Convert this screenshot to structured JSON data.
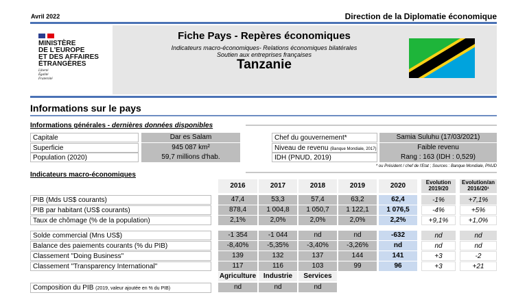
{
  "header": {
    "date": "Avril 2022",
    "department": "Direction de la Diplomatie économique",
    "title": "Fiche Pays - Repères économiques",
    "subtitle1": "Indicateurs macro-économiques- Relations économiques bilatérales",
    "subtitle2": "Soutien aux entreprises françaises",
    "country": "Tanzanie"
  },
  "logo": {
    "line1": "MINISTÈRE",
    "line2": "DE L'EUROPE",
    "line3": "ET DES AFFAIRES",
    "line4": "ÉTRANGÈRES",
    "motto": [
      "Liberté",
      "Égalité",
      "Fraternité"
    ]
  },
  "section_title": "Informations sur le pays",
  "general": {
    "title_a": "Informations générales - ",
    "title_b": "dernières données disponibles",
    "left": [
      {
        "label": "Capitale",
        "value": "Dar es Salam"
      },
      {
        "label": "Superficie",
        "value": "945 087 km²"
      },
      {
        "label": "Population (2020)",
        "value": "59,7 millions d'hab."
      }
    ],
    "right": [
      {
        "label": "Chef du gouvernement*",
        "note": "",
        "value": "Samia Suluhu (17/03/2021)"
      },
      {
        "label": "Niveau de revenu ",
        "note": "(Banque Mondiale, 2017)",
        "value": "Faible revenu"
      },
      {
        "label": "IDH (PNUD, 2019)",
        "note": "",
        "value": "Rang : 163 (IDH : 0,529)"
      }
    ],
    "footnote": "* ou Président / chef de l'Etat ; Sources : Banque Mondiale, PNUD"
  },
  "macro": {
    "title": "Indicateurs macro-économiques",
    "years": [
      "2016",
      "2017",
      "2018",
      "2019",
      "2020"
    ],
    "evo1": [
      "Evolution",
      "2019/20"
    ],
    "evo2": [
      "Evolution/an",
      "2016/20¹"
    ],
    "rows": [
      {
        "label": "PIB (Mds US$ courants)",
        "values": [
          "47,4",
          "53,3",
          "57,4",
          "63,2",
          "62,4"
        ],
        "evo": [
          "-1%",
          "+7,1%"
        ]
      },
      {
        "label": "PIB par habitant (US$ courants)",
        "values": [
          "878,4",
          "1 004,8",
          "1 050,7",
          "1 122,1",
          "1 076,5"
        ],
        "evo": [
          "-4%",
          "+5%"
        ]
      },
      {
        "label": "Taux de chômage (% de la population)",
        "values": [
          "2,1%",
          "2,0%",
          "2,0%",
          "2,0%",
          "2,2%"
        ],
        "evo": [
          "+9,1%",
          "+1,0%"
        ]
      },
      {
        "label": "Solde commercial (Mns US$)",
        "values": [
          "-1 354",
          "-1 044",
          "nd",
          "nd",
          "-632"
        ],
        "evo": [
          "nd",
          "nd"
        ]
      },
      {
        "label": "Balance des paiements courants (% du PIB)",
        "values": [
          "-8,40%",
          "-5,35%",
          "-3,40%",
          "-3,26%",
          "nd"
        ],
        "evo": [
          "nd",
          "nd"
        ]
      },
      {
        "label": "Classement \"Doing Business\"",
        "values": [
          "139",
          "132",
          "137",
          "144",
          "141"
        ],
        "evo": [
          "+3",
          "-2"
        ]
      },
      {
        "label": "Classement \"Transparency International\"",
        "values": [
          "117",
          "116",
          "103",
          "99",
          "96"
        ],
        "evo": [
          "+3",
          "+21"
        ]
      }
    ],
    "composition": {
      "label": "Composition du PIB ",
      "note": "(2019, valeur ajoutée en % du PIB)",
      "headers": [
        "Agriculture",
        "Industrie",
        "Services"
      ],
      "values": [
        "nd",
        "nd",
        "nd"
      ]
    }
  }
}
